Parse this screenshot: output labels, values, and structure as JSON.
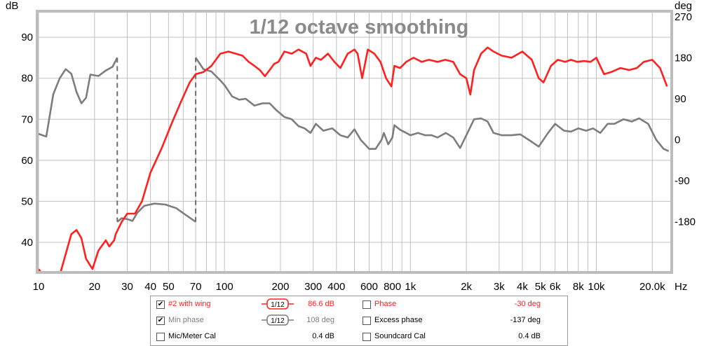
{
  "chart_data": {
    "type": "line",
    "title": "1/12 octave smoothing",
    "xlabel": "Hz",
    "ylabel_left": "dB",
    "ylabel_right": "deg",
    "x_scale": "log",
    "xlim": [
      10,
      25000
    ],
    "ylim_left": [
      33,
      96
    ],
    "ylim_right": [
      -288,
      279
    ],
    "grid": true,
    "x_ticks": [
      {
        "v": 10,
        "label": "10"
      },
      {
        "v": 20,
        "label": "20"
      },
      {
        "v": 30,
        "label": "30"
      },
      {
        "v": 40,
        "label": "40"
      },
      {
        "v": 50,
        "label": "50"
      },
      {
        "v": 70,
        "label": "70"
      },
      {
        "v": 100,
        "label": "100"
      },
      {
        "v": 200,
        "label": "200"
      },
      {
        "v": 300,
        "label": "300"
      },
      {
        "v": 400,
        "label": "400"
      },
      {
        "v": 600,
        "label": "600"
      },
      {
        "v": 800,
        "label": "800"
      },
      {
        "v": 1000,
        "label": "1k"
      },
      {
        "v": 2000,
        "label": "2k"
      },
      {
        "v": 3000,
        "label": "3k"
      },
      {
        "v": 4000,
        "label": "4k"
      },
      {
        "v": 5000,
        "label": "5k"
      },
      {
        "v": 6000,
        "label": "6k"
      },
      {
        "v": 8000,
        "label": "8k"
      },
      {
        "v": 10000,
        "label": "10k"
      },
      {
        "v": 20000,
        "label": "20.0k"
      }
    ],
    "y_ticks_left": [
      "40",
      "50",
      "60",
      "70",
      "80",
      "90"
    ],
    "y_ticks_right": [
      "-180",
      "-90",
      "0",
      "90",
      "180",
      "270"
    ],
    "series": [
      {
        "name": "#2 with wing",
        "color": "#ff2020",
        "axis": "left",
        "points": [
          [
            10,
            33.5
          ],
          [
            11,
            31
          ],
          [
            13,
            32
          ],
          [
            15,
            42
          ],
          [
            16,
            43
          ],
          [
            17,
            41
          ],
          [
            18,
            36
          ],
          [
            19.5,
            33.5
          ],
          [
            21,
            38
          ],
          [
            23,
            40.5
          ],
          [
            24,
            39
          ],
          [
            25.5,
            40.5
          ],
          [
            26,
            42
          ],
          [
            28,
            45
          ],
          [
            30,
            47
          ],
          [
            33,
            47
          ],
          [
            36,
            50
          ],
          [
            40,
            57
          ],
          [
            46,
            63
          ],
          [
            52,
            69
          ],
          [
            58,
            74
          ],
          [
            65,
            79
          ],
          [
            70,
            81
          ],
          [
            77,
            81.5
          ],
          [
            85,
            83
          ],
          [
            95,
            86
          ],
          [
            105,
            86.5
          ],
          [
            115,
            86
          ],
          [
            125,
            85.5
          ],
          [
            135,
            84
          ],
          [
            145,
            83
          ],
          [
            155,
            82
          ],
          [
            165,
            80.5
          ],
          [
            175,
            82
          ],
          [
            185,
            83.5
          ],
          [
            195,
            84
          ],
          [
            210,
            86.5
          ],
          [
            230,
            86
          ],
          [
            250,
            87
          ],
          [
            275,
            86
          ],
          [
            290,
            83
          ],
          [
            310,
            85
          ],
          [
            330,
            84.5
          ],
          [
            360,
            86
          ],
          [
            390,
            84
          ],
          [
            420,
            82.5
          ],
          [
            460,
            86
          ],
          [
            500,
            87
          ],
          [
            520,
            86
          ],
          [
            550,
            80
          ],
          [
            590,
            87
          ],
          [
            640,
            86
          ],
          [
            690,
            84
          ],
          [
            740,
            80
          ],
          [
            790,
            78
          ],
          [
            820,
            83
          ],
          [
            880,
            82.5
          ],
          [
            950,
            84
          ],
          [
            1040,
            85
          ],
          [
            1150,
            84
          ],
          [
            1260,
            84.5
          ],
          [
            1400,
            84
          ],
          [
            1540,
            84.5
          ],
          [
            1700,
            84
          ],
          [
            1850,
            81
          ],
          [
            2000,
            80
          ],
          [
            2100,
            76
          ],
          [
            2200,
            82
          ],
          [
            2400,
            86
          ],
          [
            2600,
            87.5
          ],
          [
            2800,
            86.5
          ],
          [
            3100,
            85.5
          ],
          [
            3500,
            85
          ],
          [
            4000,
            86.5
          ],
          [
            4500,
            84.5
          ],
          [
            4900,
            80
          ],
          [
            5200,
            79
          ],
          [
            5700,
            83
          ],
          [
            6200,
            84.5
          ],
          [
            6800,
            84
          ],
          [
            7300,
            84.5
          ],
          [
            7900,
            84
          ],
          [
            8600,
            84.2
          ],
          [
            9300,
            84
          ],
          [
            10000,
            85
          ],
          [
            11000,
            81
          ],
          [
            12000,
            81.5
          ],
          [
            13500,
            82.5
          ],
          [
            15000,
            82
          ],
          [
            16500,
            82.5
          ],
          [
            18000,
            84
          ],
          [
            20000,
            84.5
          ],
          [
            22000,
            82.5
          ],
          [
            24000,
            78
          ]
        ]
      },
      {
        "name": "Min phase",
        "color": "#7d7d7d",
        "axis": "right",
        "segments": [
          [
            [
              10,
              13
            ],
            [
              11,
              7
            ],
            [
              12,
              100
            ],
            [
              13,
              135
            ],
            [
              14,
              155
            ],
            [
              15,
              145
            ],
            [
              16,
              105
            ],
            [
              17,
              80
            ],
            [
              18,
              92
            ],
            [
              19,
              143
            ],
            [
              21,
              140
            ],
            [
              23,
              152
            ],
            [
              25,
              160
            ],
            [
              26.5,
              180
            ]
          ],
          [
            [
              26.5,
              -180
            ],
            [
              28,
              -172
            ],
            [
              30,
              -174
            ],
            [
              32,
              -178
            ],
            [
              34,
              -160
            ],
            [
              37,
              -145
            ],
            [
              42,
              -140
            ],
            [
              48,
              -142
            ],
            [
              55,
              -150
            ],
            [
              62,
              -165
            ],
            [
              70,
              -180
            ]
          ],
          [
            [
              70,
              180
            ],
            [
              77,
              155
            ],
            [
              85,
              150
            ],
            [
              95,
              130
            ],
            [
              100,
              120
            ],
            [
              110,
              95
            ],
            [
              120,
              88
            ],
            [
              130,
              90
            ],
            [
              145,
              75
            ],
            [
              160,
              80
            ],
            [
              175,
              80
            ],
            [
              190,
              65
            ],
            [
              210,
              50
            ],
            [
              230,
              45
            ],
            [
              250,
              30
            ],
            [
              270,
              25
            ],
            [
              290,
              15
            ],
            [
              310,
              35
            ],
            [
              340,
              20
            ],
            [
              380,
              25
            ],
            [
              420,
              10
            ],
            [
              460,
              5
            ],
            [
              500,
              23
            ],
            [
              540,
              0
            ],
            [
              600,
              -20
            ],
            [
              650,
              -20
            ],
            [
              700,
              0
            ],
            [
              720,
              15
            ],
            [
              760,
              -10
            ],
            [
              800,
              5
            ],
            [
              820,
              32
            ],
            [
              880,
              22
            ],
            [
              950,
              15
            ],
            [
              1000,
              10
            ],
            [
              1100,
              15
            ],
            [
              1200,
              10
            ],
            [
              1300,
              10
            ],
            [
              1400,
              5
            ],
            [
              1550,
              15
            ],
            [
              1700,
              5
            ],
            [
              1850,
              -18
            ],
            [
              2000,
              10
            ],
            [
              2200,
              45
            ],
            [
              2400,
              47
            ],
            [
              2600,
              40
            ],
            [
              2800,
              15
            ],
            [
              3100,
              10
            ],
            [
              3500,
              10
            ],
            [
              3900,
              12
            ],
            [
              4400,
              -2
            ],
            [
              4900,
              -15
            ],
            [
              5500,
              15
            ],
            [
              6000,
              35
            ],
            [
              6700,
              20
            ],
            [
              7300,
              18
            ],
            [
              8000,
              25
            ],
            [
              8800,
              20
            ],
            [
              9600,
              25
            ],
            [
              10500,
              15
            ],
            [
              11500,
              35
            ],
            [
              12500,
              35
            ],
            [
              14000,
              45
            ],
            [
              15500,
              40
            ],
            [
              17000,
              47
            ],
            [
              19000,
              35
            ],
            [
              21000,
              0
            ],
            [
              23000,
              -20
            ],
            [
              24500,
              -25
            ]
          ]
        ]
      }
    ]
  },
  "legend": {
    "rows": [
      {
        "checked": "✔",
        "label": "#2 with wing",
        "smoothing": "1/12",
        "value": "86.6 dB",
        "phase_label": "Phase",
        "phase_value": "-30 deg"
      },
      {
        "checked": "✔",
        "label": "Min phase",
        "smoothing": "1/12",
        "value": "108 deg",
        "phase_label": "Excess phase",
        "phase_value": "-137 deg"
      },
      {
        "checked": "",
        "label": "Mic/Meter Cal",
        "value": "0.4 dB",
        "phase_label": "Soundcard Cal",
        "phase_value": "0.4 dB"
      }
    ]
  },
  "colors": {
    "frame": "#bdbdbd",
    "grid": "#c0c0c0",
    "dashed": "#6f6f6f"
  }
}
